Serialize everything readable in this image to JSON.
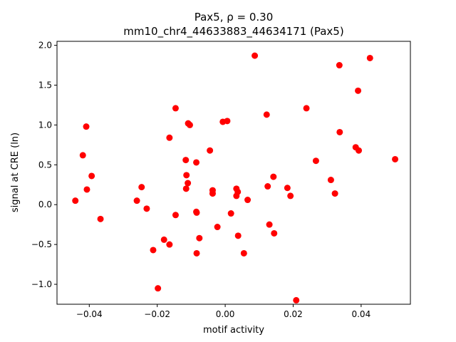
{
  "chart_data": {
    "type": "scatter",
    "title_line1": "Pax5, ρ = 0.30",
    "title_line2": "mm10_chr4_44633883_44634171 (Pax5)",
    "xlabel": "motif activity",
    "ylabel": "signal at CRE (ln)",
    "xlim": [
      -0.0495,
      0.0545
    ],
    "ylim": [
      -1.25,
      2.05
    ],
    "xticks": [
      -0.04,
      -0.02,
      0.0,
      0.02,
      0.04
    ],
    "xtick_labels": [
      "−0.04",
      "−0.02",
      "0.00",
      "0.02",
      "0.04"
    ],
    "yticks": [
      -1.0,
      -0.5,
      0.0,
      0.5,
      1.0,
      1.5,
      2.0
    ],
    "ytick_labels": [
      "−1.0",
      "−0.5",
      "0.0",
      "0.5",
      "1.0",
      "1.5",
      "2.0"
    ],
    "grid": false,
    "marker_color": "#ff0000",
    "points": [
      {
        "x": -0.0441,
        "y": 0.05
      },
      {
        "x": -0.0419,
        "y": 0.62
      },
      {
        "x": -0.0409,
        "y": 0.98
      },
      {
        "x": -0.0407,
        "y": 0.19
      },
      {
        "x": -0.0393,
        "y": 0.36
      },
      {
        "x": -0.0367,
        "y": -0.18
      },
      {
        "x": -0.026,
        "y": 0.05
      },
      {
        "x": -0.0246,
        "y": 0.22
      },
      {
        "x": -0.0231,
        "y": -0.05
      },
      {
        "x": -0.0212,
        "y": -0.57
      },
      {
        "x": -0.0198,
        "y": -1.05
      },
      {
        "x": -0.018,
        "y": -0.44
      },
      {
        "x": -0.0164,
        "y": 0.84
      },
      {
        "x": -0.0164,
        "y": -0.5
      },
      {
        "x": -0.0146,
        "y": 1.21
      },
      {
        "x": -0.0146,
        "y": -0.13
      },
      {
        "x": -0.0116,
        "y": 0.56
      },
      {
        "x": -0.0115,
        "y": 0.2
      },
      {
        "x": -0.0114,
        "y": 0.37
      },
      {
        "x": -0.011,
        "y": 0.27
      },
      {
        "x": -0.0109,
        "y": 1.02
      },
      {
        "x": -0.0104,
        "y": 1.0
      },
      {
        "x": -0.0085,
        "y": 0.53
      },
      {
        "x": -0.0085,
        "y": -0.09
      },
      {
        "x": -0.0084,
        "y": -0.1
      },
      {
        "x": -0.0084,
        "y": -0.61
      },
      {
        "x": -0.0076,
        "y": -0.42
      },
      {
        "x": -0.0045,
        "y": 0.68
      },
      {
        "x": -0.0037,
        "y": 0.18
      },
      {
        "x": -0.0037,
        "y": 0.14
      },
      {
        "x": -0.0023,
        "y": -0.28
      },
      {
        "x": -0.0007,
        "y": 1.04
      },
      {
        "x": 0.0006,
        "y": 1.05
      },
      {
        "x": 0.0017,
        "y": -0.11
      },
      {
        "x": 0.0033,
        "y": 0.2
      },
      {
        "x": 0.0033,
        "y": 0.11
      },
      {
        "x": 0.0037,
        "y": 0.16
      },
      {
        "x": 0.0038,
        "y": -0.39
      },
      {
        "x": 0.0055,
        "y": -0.61
      },
      {
        "x": 0.0066,
        "y": 0.06
      },
      {
        "x": 0.0087,
        "y": 1.87
      },
      {
        "x": 0.0122,
        "y": 1.13
      },
      {
        "x": 0.0125,
        "y": 0.23
      },
      {
        "x": 0.013,
        "y": -0.25
      },
      {
        "x": 0.0142,
        "y": 0.35
      },
      {
        "x": 0.0144,
        "y": -0.36
      },
      {
        "x": 0.0183,
        "y": 0.21
      },
      {
        "x": 0.0192,
        "y": 0.11
      },
      {
        "x": 0.0209,
        "y": -1.2
      },
      {
        "x": 0.0239,
        "y": 1.21
      },
      {
        "x": 0.0267,
        "y": 0.55
      },
      {
        "x": 0.0311,
        "y": 0.31
      },
      {
        "x": 0.0323,
        "y": 0.14
      },
      {
        "x": 0.0336,
        "y": 1.75
      },
      {
        "x": 0.0337,
        "y": 0.91
      },
      {
        "x": 0.0384,
        "y": 0.72
      },
      {
        "x": 0.0391,
        "y": 1.43
      },
      {
        "x": 0.0393,
        "y": 0.68
      },
      {
        "x": 0.0426,
        "y": 1.84
      },
      {
        "x": 0.05,
        "y": 0.57
      }
    ]
  }
}
